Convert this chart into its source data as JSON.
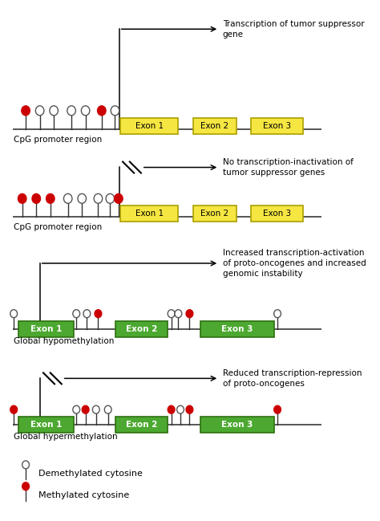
{
  "bg_color": "#ffffff",
  "exon_yellow": "#f5e642",
  "exon_yellow_border": "#aaa000",
  "exon_green": "#4ca830",
  "exon_green_border": "#2d7010",
  "methylated_color": "#cc0000",
  "demethylated_fill": "#ffffff",
  "demethylated_edge": "#555555",
  "line_color": "#555555",
  "section1_arrow_text": "Transcription of tumor suppressor\ngene",
  "section2_arrow_text": "No transcription-inactivation of\ntumor suppressor genes",
  "section3_arrow_text": "Increased transcription-activation\nof proto-oncogenes and increased\ngenomic instability",
  "section4_arrow_text": "Reduced transcription-repression\nof proto-oncogenes",
  "label1": "CpG promoter region",
  "label2": "CpG promoter region",
  "label3": "Global hypomethylation",
  "label4": "Global hypermethylation",
  "legend_demethylated": "Demethylated cytosine",
  "legend_methylated": "Methylated cytosine",
  "font_size": 7.5
}
